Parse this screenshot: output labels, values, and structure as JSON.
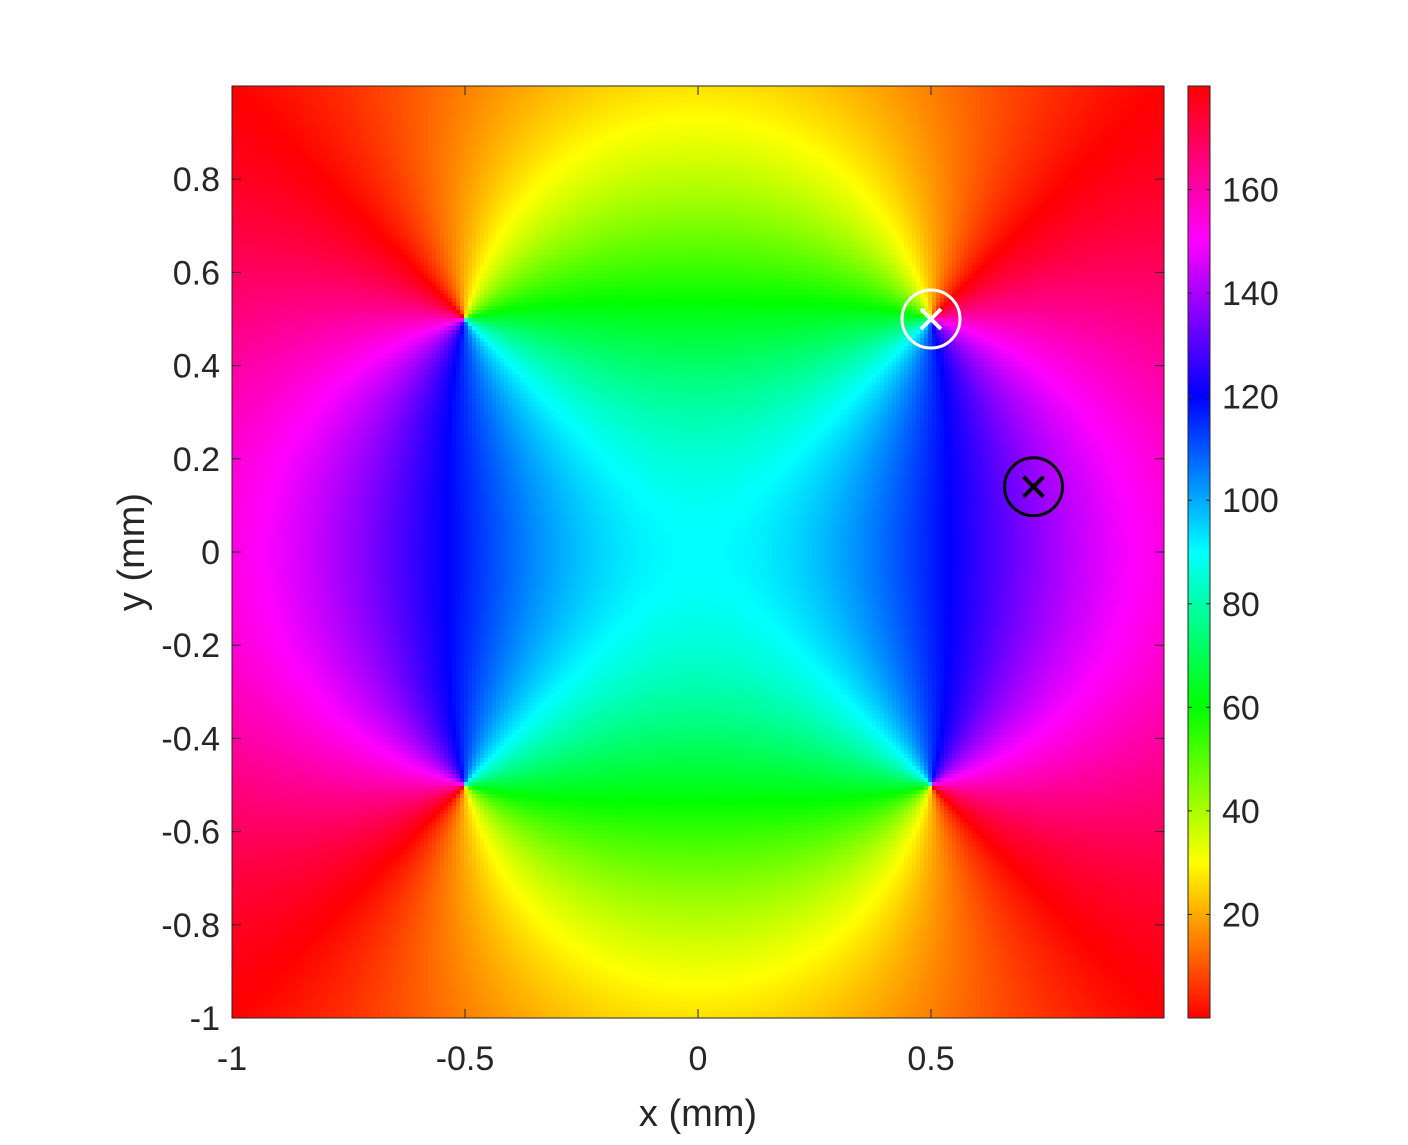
{
  "chart_data": {
    "type": "heatmap",
    "title": "",
    "xlabel": "x (mm)",
    "ylabel": "y (mm)",
    "xlim": [
      -1,
      1
    ],
    "ylim": [
      -1,
      1
    ],
    "x_ticks": [
      -1,
      -0.5,
      0,
      0.5
    ],
    "x_tick_labels": [
      "-1",
      "-0.5",
      "0",
      "0.5"
    ],
    "y_ticks": [
      -1,
      -0.8,
      -0.6,
      -0.4,
      -0.2,
      0,
      0.2,
      0.4,
      0.6,
      0.8
    ],
    "y_tick_labels": [
      "-1",
      "-0.8",
      "-0.6",
      "-0.4",
      "-0.2",
      "0",
      "0.2",
      "0.4",
      "0.6",
      "0.8"
    ],
    "colormap": "hsv",
    "colorbar": {
      "range": [
        0,
        180
      ],
      "ticks": [
        20,
        40,
        60,
        80,
        100,
        120,
        140,
        160
      ],
      "tick_labels": [
        "20",
        "40",
        "60",
        "80",
        "100",
        "120",
        "140",
        "160"
      ]
    },
    "singularities": [
      {
        "x": -0.5,
        "y": 0.5
      },
      {
        "x": 0.5,
        "y": 0.5
      },
      {
        "x": -0.5,
        "y": -0.5
      },
      {
        "x": 0.5,
        "y": -0.5
      }
    ],
    "markers": [
      {
        "name": "white-marker",
        "x": 0.5,
        "y": 0.5,
        "color": "#ffffff"
      },
      {
        "name": "black-marker",
        "x": 0.72,
        "y": 0.14,
        "color": "#000000"
      }
    ],
    "grid": false
  }
}
